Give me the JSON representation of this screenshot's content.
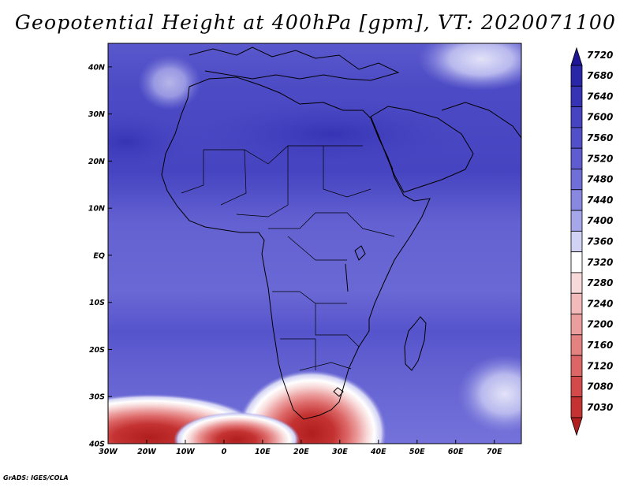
{
  "title": "Geopotential Height at 400hPa [gpm], VT: 2020071100",
  "credit": "GrADS: IGES/COLA",
  "map": {
    "lon_range": [
      -30,
      77
    ],
    "lat_range": [
      -40,
      45
    ],
    "lon_ticks": [
      {
        "value": -30,
        "label": "30W"
      },
      {
        "value": -20,
        "label": "20W"
      },
      {
        "value": -10,
        "label": "10W"
      },
      {
        "value": 0,
        "label": "0"
      },
      {
        "value": 10,
        "label": "10E"
      },
      {
        "value": 20,
        "label": "20E"
      },
      {
        "value": 30,
        "label": "30E"
      },
      {
        "value": 40,
        "label": "40E"
      },
      {
        "value": 50,
        "label": "50E"
      },
      {
        "value": 60,
        "label": "60E"
      },
      {
        "value": 70,
        "label": "70E"
      }
    ],
    "lat_ticks": [
      {
        "value": 40,
        "label": "40N"
      },
      {
        "value": 30,
        "label": "30N"
      },
      {
        "value": 20,
        "label": "20N"
      },
      {
        "value": 10,
        "label": "10N"
      },
      {
        "value": 0,
        "label": "EQ"
      },
      {
        "value": -10,
        "label": "10S"
      },
      {
        "value": -20,
        "label": "20S"
      },
      {
        "value": -30,
        "label": "30S"
      },
      {
        "value": -40,
        "label": "40S"
      }
    ]
  },
  "colorbar": {
    "levels": [
      {
        "label": "7720",
        "color": "#1e1696"
      },
      {
        "label": "7680",
        "color": "#2a26a8"
      },
      {
        "label": "7640",
        "color": "#3634b4"
      },
      {
        "label": "7600",
        "color": "#4644c0"
      },
      {
        "label": "7560",
        "color": "#5250c8"
      },
      {
        "label": "7520",
        "color": "#5e5cd0"
      },
      {
        "label": "7480",
        "color": "#706ed8"
      },
      {
        "label": "7440",
        "color": "#8888e0"
      },
      {
        "label": "7400",
        "color": "#a6a6ea"
      },
      {
        "label": "7360",
        "color": "#d2d2f4"
      },
      {
        "label": "7320",
        "color": "#ffffff"
      },
      {
        "label": "7280",
        "color": "#f8d8d8"
      },
      {
        "label": "7240",
        "color": "#f2baba"
      },
      {
        "label": "7200",
        "color": "#ec9e9e"
      },
      {
        "label": "7160",
        "color": "#e48282"
      },
      {
        "label": "7120",
        "color": "#dc6666"
      },
      {
        "label": "7080",
        "color": "#d24a4a"
      },
      {
        "label": "7030",
        "color": "#c43232"
      },
      {
        "label": "",
        "color": "#b01e1e"
      }
    ]
  }
}
